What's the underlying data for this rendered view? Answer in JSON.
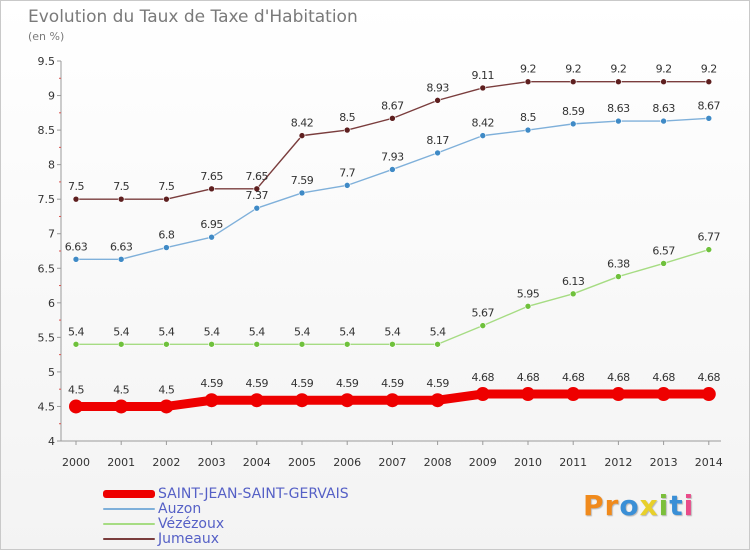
{
  "title": "Evolution du Taux de Taxe d'Habitation",
  "subtitle": "(en %)",
  "brand": {
    "letters": [
      {
        "char": "P",
        "color": "#f08a1c"
      },
      {
        "char": "r",
        "color": "#f08a1c"
      },
      {
        "char": "o",
        "color": "#3a8fd6"
      },
      {
        "char": "x",
        "color": "#e8d02a"
      },
      {
        "char": "i",
        "color": "#7bbf3b"
      },
      {
        "char": "t",
        "color": "#3a8fd6"
      },
      {
        "char": "i",
        "color": "#e94b8a"
      }
    ]
  },
  "chart_data": {
    "type": "line",
    "title": "Evolution du Taux de Taxe d'Habitation",
    "ylabel": "(en %)",
    "xlabel": "",
    "x": [
      "2000",
      "2001",
      "2002",
      "2003",
      "2004",
      "2005",
      "2006",
      "2007",
      "2008",
      "2009",
      "2010",
      "2011",
      "2012",
      "2013",
      "2014"
    ],
    "ylim": [
      4,
      9.5
    ],
    "yticks": [
      "4",
      "4.5",
      "5",
      "5.5",
      "6",
      "6.5",
      "7",
      "7.5",
      "8",
      "8.5",
      "9",
      "9.5"
    ],
    "grid": false,
    "legend_position": "bottom-left",
    "series": [
      {
        "name": "SAINT-JEAN-SAINT-GERVAIS",
        "color": "#ee0000",
        "marker_color": "#ee0000",
        "thick": true,
        "values": [
          4.5,
          4.5,
          4.5,
          4.59,
          4.59,
          4.59,
          4.59,
          4.59,
          4.59,
          4.68,
          4.68,
          4.68,
          4.68,
          4.68,
          4.68
        ],
        "labels": [
          "4.5",
          "4.5",
          "4.5",
          "4.59",
          "4.59",
          "4.59",
          "4.59",
          "4.59",
          "4.59",
          "4.68",
          "4.68",
          "4.68",
          "4.68",
          "4.68",
          "4.68"
        ]
      },
      {
        "name": "Auzon",
        "color": "#7fb0da",
        "marker_color": "#3f8ac6",
        "thick": false,
        "values": [
          6.63,
          6.63,
          6.8,
          6.95,
          7.37,
          7.59,
          7.7,
          7.93,
          8.17,
          8.42,
          8.5,
          8.59,
          8.63,
          8.63,
          8.67
        ],
        "labels": [
          "6.63",
          "6.63",
          "6.8",
          "6.95",
          "7.37",
          "7.59",
          "7.7",
          "7.93",
          "8.17",
          "8.42",
          "8.5",
          "8.59",
          "8.63",
          "8.63",
          "8.67"
        ]
      },
      {
        "name": "Vézézoux",
        "color": "#a6dc83",
        "marker_color": "#6fc13c",
        "thick": false,
        "values": [
          5.4,
          5.4,
          5.4,
          5.4,
          5.4,
          5.4,
          5.4,
          5.4,
          5.4,
          5.67,
          5.95,
          6.13,
          6.38,
          6.57,
          6.77
        ],
        "labels": [
          "5.4",
          "5.4",
          "5.4",
          "5.4",
          "5.4",
          "5.4",
          "5.4",
          "5.4",
          "5.4",
          "5.67",
          "5.95",
          "6.13",
          "6.38",
          "6.57",
          "6.77"
        ]
      },
      {
        "name": "Jumeaux",
        "color": "#7a3d3d",
        "marker_color": "#5e1f1f",
        "thick": false,
        "values": [
          7.5,
          7.5,
          7.5,
          7.65,
          7.65,
          8.42,
          8.5,
          8.67,
          8.93,
          9.11,
          9.2,
          9.2,
          9.2,
          9.2,
          9.2
        ],
        "labels": [
          "7.5",
          "7.5",
          "7.5",
          "7.65",
          "7.65",
          "8.42",
          "8.5",
          "8.67",
          "8.93",
          "9.11",
          "9.2",
          "9.2",
          "9.2",
          "9.2",
          "9.2"
        ]
      }
    ]
  }
}
